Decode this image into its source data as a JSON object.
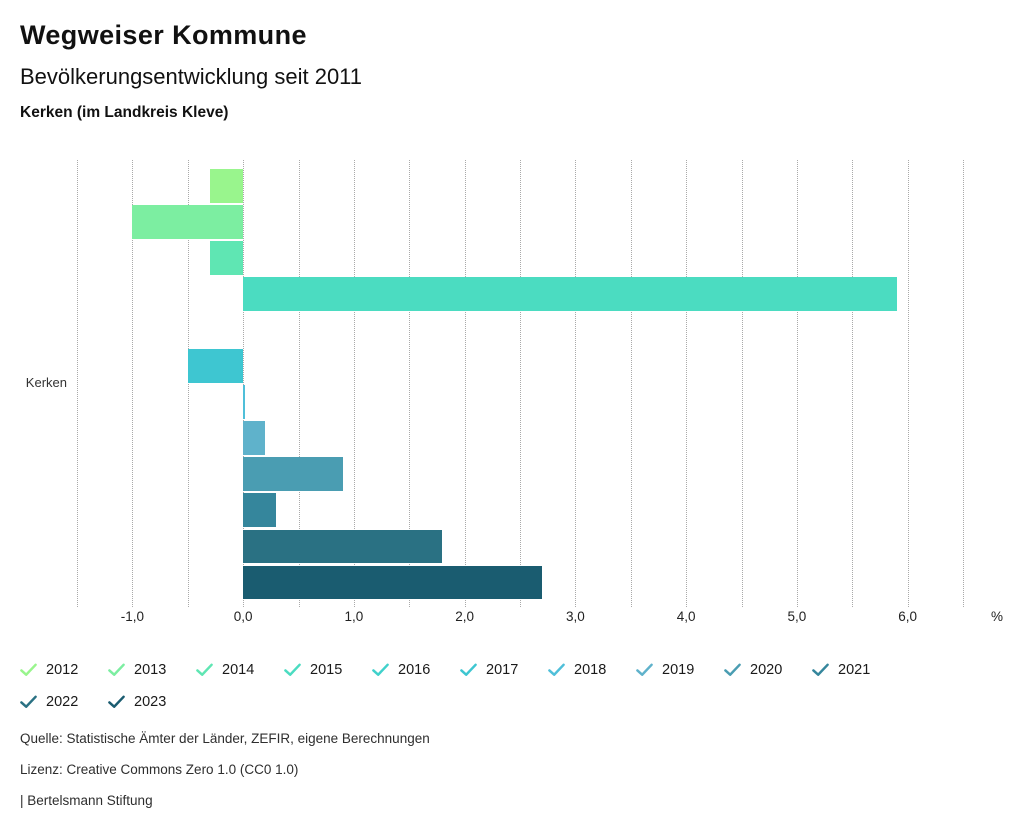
{
  "header": {
    "title": "Wegweiser Kommune",
    "subtitle": "Bevölkerungsentwicklung seit 2011",
    "region": "Kerken (im Landkreis Kleve)"
  },
  "chart_data": {
    "type": "bar",
    "orientation": "horizontal",
    "title": "Bevölkerungsentwicklung seit 2011",
    "group_label": "Kerken",
    "unit": "%",
    "years": [
      "2012",
      "2013",
      "2014",
      "2015",
      "2016",
      "2017",
      "2018",
      "2019",
      "2020",
      "2021",
      "2022",
      "2023"
    ],
    "values": [
      -0.3,
      -1.0,
      -0.3,
      5.9,
      0.0,
      -0.5,
      0.02,
      0.2,
      0.9,
      0.3,
      1.8,
      2.7
    ],
    "colors": [
      "#99F58D",
      "#7CEEA1",
      "#5FE6B3",
      "#4BDCC1",
      "#40D1CB",
      "#3EC6D1",
      "#4FBFD9",
      "#5FB2CB",
      "#4A9DB2",
      "#35869C",
      "#2A7183",
      "#1A5C70"
    ],
    "xlim": [
      -1.5,
      6.5
    ],
    "grid_step": 0.5,
    "grid": true,
    "legend_position": "bottom",
    "xticks": [
      {
        "value": -1,
        "label": "-1,0"
      },
      {
        "value": 0,
        "label": "0,0"
      },
      {
        "value": 1,
        "label": "1,0"
      },
      {
        "value": 2,
        "label": "2,0"
      },
      {
        "value": 3,
        "label": "3,0"
      },
      {
        "value": 4,
        "label": "4,0"
      },
      {
        "value": 5,
        "label": "5,0"
      },
      {
        "value": 6,
        "label": "6,0"
      }
    ],
    "unit_x": 920
  },
  "footer": {
    "source": "Quelle: Statistische Ämter der Länder, ZEFIR, eigene Berechnungen",
    "license": "Lizenz: Creative Commons Zero 1.0 (CC0 1.0)",
    "attribution": "| Bertelsmann Stiftung"
  }
}
